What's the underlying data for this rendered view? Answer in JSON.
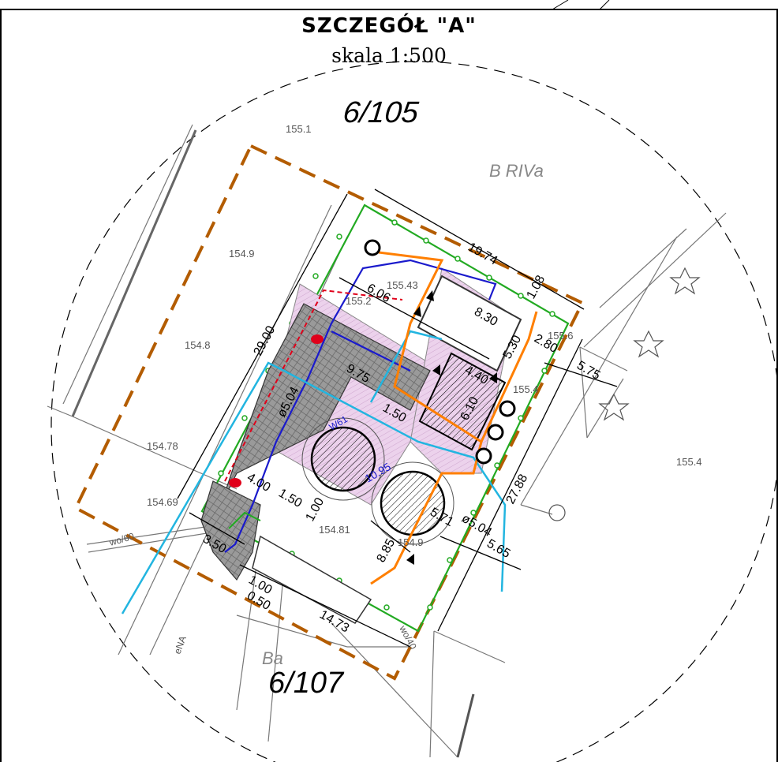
{
  "sheet": {
    "title": "SZCZEGÓŁ \"A\"",
    "scale": "skala 1:500"
  },
  "parcels": {
    "north": "6/105",
    "south": "6/107",
    "land_use_ne": "B RIVa",
    "land_use_s": "Ba"
  },
  "elevations": {
    "e1": "155.1",
    "e2": "154.9",
    "e3": "154.8",
    "e4": "154.78",
    "e5": "154.69",
    "e6": "155.4",
    "e7": "154.81",
    "e8": "154.9",
    "e9": "155.43",
    "e10": "155.2",
    "e11": "155.4",
    "e12": "155.6"
  },
  "dimensions": {
    "d1": "19.74",
    "d2": "29.00",
    "d3": "6.06",
    "d4": "8.30",
    "d5": "1.08",
    "d6": "5.30",
    "d7": "2.80",
    "d8": "5.75",
    "d9": "9.75",
    "d10": "4.40",
    "d11": "6.10",
    "d12": "ø5.04",
    "d13": "ø5.04",
    "d14": "27.88",
    "d15": "5.65",
    "d16": "4.00",
    "d17": "1.50",
    "d18": "1.00",
    "d19": "3.50",
    "d20": "1.00",
    "d21": "0.50",
    "d22": "14.73",
    "d23": "8.85",
    "d24": "1.50",
    "d25": "5.71",
    "d26": "10.95"
  },
  "utility_labels": {
    "w1": "wo/60",
    "w2": "eNA",
    "w3": "wo/40",
    "w4": "W61"
  },
  "colors": {
    "boundary": "#b35c00",
    "fence": "#22aa22",
    "water": "#1a1acc",
    "storm": "#22b5e0",
    "gas": "#ff7f00",
    "electric": "#e0001a",
    "paving": "#e8c8e8",
    "hatch": "#7a7a7a"
  }
}
